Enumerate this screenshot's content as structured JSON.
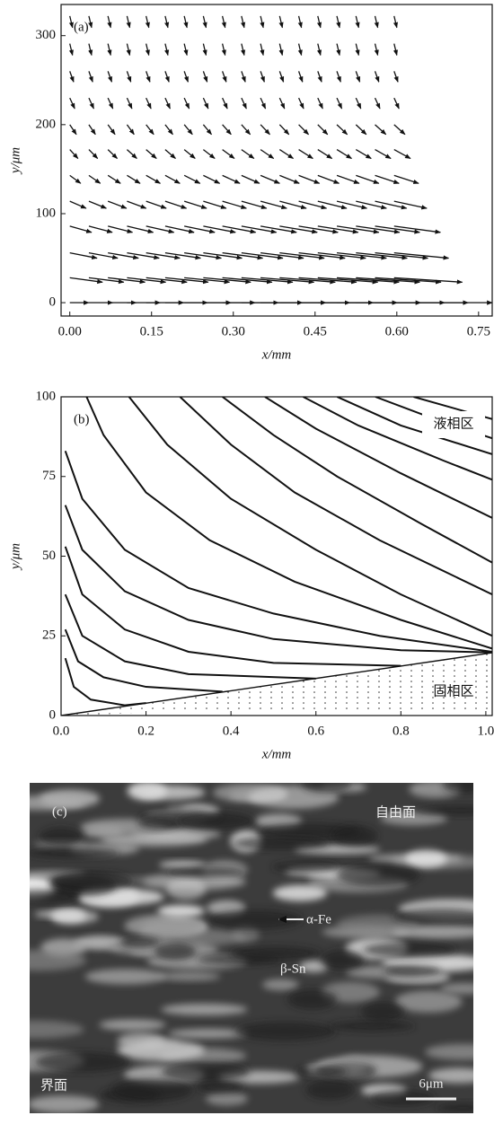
{
  "chart_data": [
    {
      "type": "quiver",
      "panel": "(a)",
      "xlabel": "x/mm",
      "ylabel": "y/μm",
      "xlim": [
        -0.016,
        0.775
      ],
      "ylim": [
        -15,
        335
      ],
      "xticks": [
        {
          "value": 0,
          "label": "0.00"
        },
        0.15,
        {
          "value": 0.3,
          "label": "0.30"
        },
        0.45,
        {
          "value": 0.6,
          "label": "0.60"
        },
        0.75
      ],
      "yticks": [
        0,
        100,
        200,
        300
      ],
      "x": [
        0,
        0.035,
        0.07,
        0.105,
        0.14,
        0.175,
        0.21,
        0.245,
        0.28,
        0.315,
        0.35,
        0.385,
        0.42,
        0.455,
        0.49,
        0.525,
        0.56,
        0.595
      ],
      "rows": [
        {
          "y": 322,
          "v": -13,
          "u": [
            0.005,
            0.005,
            0.005,
            0.005,
            0.005,
            0.005,
            0.005,
            0.005,
            0.005,
            0.005,
            0.005,
            0.005,
            0.005,
            0.005,
            0.005,
            0.005,
            0.005,
            0.005
          ]
        },
        {
          "y": 291,
          "v": -13,
          "u": [
            0.005,
            0.005,
            0.005,
            0.005,
            0.005,
            0.005,
            0.005,
            0.005,
            0.005,
            0.005,
            0.005,
            0.005,
            0.005,
            0.005,
            0.005,
            0.005,
            0.005,
            0.005
          ]
        },
        {
          "y": 260,
          "v": -12,
          "u": [
            0.007,
            0.007,
            0.007,
            0.007,
            0.007,
            0.007,
            0.007,
            0.007,
            0.007,
            0.007,
            0.007,
            0.007,
            0.007,
            0.007,
            0.007,
            0.007,
            0.007,
            0.007
          ]
        },
        {
          "y": 230,
          "v": -12,
          "u": [
            0.009,
            0.009,
            0.009,
            0.009,
            0.009,
            0.009,
            0.009,
            0.009,
            0.009,
            0.009,
            0.009,
            0.009,
            0.009,
            0.009,
            0.009,
            0.009,
            0.009,
            0.009
          ]
        },
        {
          "y": 200,
          "v": -11,
          "u": [
            0.012,
            0.012,
            0.013,
            0.013,
            0.014,
            0.014,
            0.015,
            0.015,
            0.016,
            0.016,
            0.017,
            0.017,
            0.018,
            0.018,
            0.019,
            0.019,
            0.02,
            0.02
          ]
        },
        {
          "y": 172,
          "v": -10,
          "u": [
            0.015,
            0.016,
            0.017,
            0.018,
            0.019,
            0.019,
            0.02,
            0.021,
            0.022,
            0.023,
            0.024,
            0.025,
            0.026,
            0.026,
            0.027,
            0.028,
            0.029,
            0.03
          ]
        },
        {
          "y": 143,
          "v": -9,
          "u": [
            0.02,
            0.021,
            0.023,
            0.024,
            0.026,
            0.027,
            0.029,
            0.03,
            0.032,
            0.033,
            0.035,
            0.036,
            0.038,
            0.039,
            0.041,
            0.042,
            0.044,
            0.045
          ]
        },
        {
          "y": 114,
          "v": -8,
          "u": [
            0.03,
            0.032,
            0.034,
            0.035,
            0.037,
            0.039,
            0.041,
            0.042,
            0.044,
            0.046,
            0.048,
            0.049,
            0.051,
            0.053,
            0.055,
            0.056,
            0.058,
            0.06
          ]
        },
        {
          "y": 86,
          "v": -7,
          "u": [
            0.04,
            0.043,
            0.045,
            0.048,
            0.051,
            0.053,
            0.056,
            0.059,
            0.061,
            0.064,
            0.066,
            0.069,
            0.072,
            0.074,
            0.077,
            0.08,
            0.082,
            0.085
          ]
        },
        {
          "y": 56,
          "v": -6,
          "u": [
            0.05,
            0.053,
            0.056,
            0.059,
            0.062,
            0.065,
            0.068,
            0.071,
            0.074,
            0.076,
            0.079,
            0.082,
            0.085,
            0.088,
            0.091,
            0.094,
            0.097,
            0.1
          ]
        },
        {
          "y": 28,
          "v": -5,
          "u": [
            0.06,
            0.064,
            0.068,
            0.071,
            0.075,
            0.079,
            0.083,
            0.087,
            0.091,
            0.094,
            0.098,
            0.102,
            0.106,
            0.11,
            0.114,
            0.117,
            0.121,
            0.125
          ]
        },
        {
          "y": 0,
          "v": 0,
          "u": [
            0.035,
            0.044,
            0.052,
            0.061,
            0.069,
            0.078,
            0.086,
            0.095,
            0.103,
            0.112,
            0.12,
            0.129,
            0.137,
            0.146,
            0.154,
            0.163,
            0.171,
            0.18
          ]
        }
      ]
    },
    {
      "type": "streamline",
      "panel": "(b)",
      "xlabel": "x/mm",
      "ylabel": "y/μm",
      "xlim": [
        0,
        1.015
      ],
      "ylim": [
        0,
        100
      ],
      "xticks": [
        {
          "value": 0,
          "label": "0.0"
        },
        0.2,
        0.4,
        0.6,
        0.8,
        {
          "value": 1,
          "label": "1.0"
        }
      ],
      "yticks": [
        0,
        25,
        50,
        75,
        100
      ],
      "annotations": [
        "液相区",
        "固相区"
      ],
      "lines": [
        {
          "x": [
            0.01,
            0.03,
            0.07,
            0.15,
            0.2
          ],
          "y": [
            18,
            9,
            5,
            3.2,
            3.9
          ]
        },
        {
          "x": [
            0.01,
            0.04,
            0.1,
            0.2,
            0.38
          ],
          "y": [
            27,
            17,
            12,
            9,
            7.5
          ]
        },
        {
          "x": [
            0.01,
            0.05,
            0.15,
            0.3,
            0.6
          ],
          "y": [
            38,
            25,
            17,
            13,
            11.6
          ]
        },
        {
          "x": [
            0.01,
            0.05,
            0.15,
            0.3,
            0.5,
            0.8
          ],
          "y": [
            53,
            38,
            27,
            20,
            16.5,
            15.6
          ]
        },
        {
          "x": [
            0.01,
            0.05,
            0.15,
            0.3,
            0.5,
            0.8,
            1.015
          ],
          "y": [
            66,
            52,
            39,
            30,
            24,
            20.5,
            19.8
          ]
        },
        {
          "x": [
            0.01,
            0.05,
            0.15,
            0.3,
            0.5,
            0.75,
            1.015
          ],
          "y": [
            83,
            68,
            52,
            40,
            32,
            25,
            20
          ]
        },
        {
          "x": [
            0.06,
            0.1,
            0.2,
            0.35,
            0.55,
            0.8,
            1.015
          ],
          "y": [
            100,
            88,
            70,
            55,
            42,
            30,
            21
          ]
        },
        {
          "x": [
            0.16,
            0.25,
            0.4,
            0.6,
            0.8,
            1.015
          ],
          "y": [
            100,
            85,
            68,
            52,
            38,
            25
          ]
        },
        {
          "x": [
            0.28,
            0.4,
            0.55,
            0.75,
            1.015
          ],
          "y": [
            100,
            85,
            70,
            55,
            38
          ]
        },
        {
          "x": [
            0.38,
            0.5,
            0.65,
            0.85,
            1.015
          ],
          "y": [
            100,
            88,
            75,
            60,
            48
          ]
        },
        {
          "x": [
            0.48,
            0.6,
            0.8,
            1.015
          ],
          "y": [
            100,
            90,
            76,
            62
          ]
        },
        {
          "x": [
            0.57,
            0.7,
            0.9,
            1.015
          ],
          "y": [
            100,
            91,
            80,
            74
          ]
        },
        {
          "x": [
            0.65,
            0.8,
            1.015
          ],
          "y": [
            100,
            91,
            82
          ]
        },
        {
          "x": [
            0.74,
            0.9,
            1.015
          ],
          "y": [
            100,
            92,
            87
          ]
        },
        {
          "x": [
            0.83,
            1.015
          ],
          "y": [
            100,
            93
          ]
        }
      ],
      "front": {
        "x": [
          0,
          1.015
        ],
        "y": [
          0,
          19.7
        ]
      }
    }
  ],
  "micrograph": {
    "panel": "(c)",
    "labels": [
      "自由面",
      "α-Fe",
      "β-Sn",
      "界面",
      "6μm"
    ]
  }
}
